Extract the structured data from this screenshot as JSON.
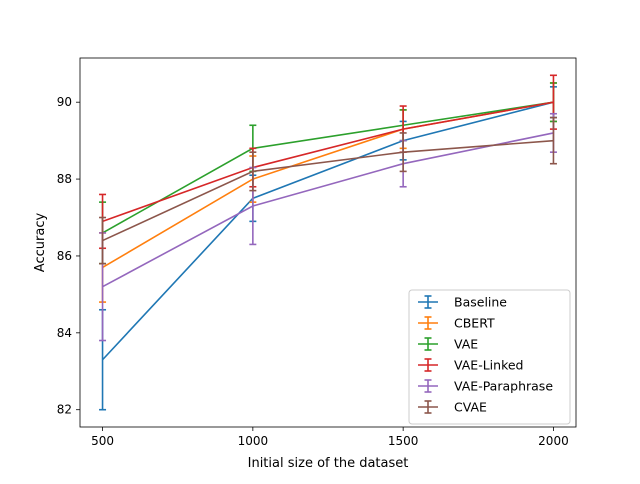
{
  "chart_data": {
    "type": "line",
    "title": "",
    "xlabel": "Initial size of the dataset",
    "ylabel": "Accuracy",
    "x": [
      500,
      1000,
      1500,
      2000
    ],
    "x_ticks": [
      "500",
      "1000",
      "1500",
      "2000"
    ],
    "y_ticks": [
      "82",
      "84",
      "86",
      "88",
      "90"
    ],
    "xlim": [
      425,
      2075
    ],
    "ylim": [
      81.55,
      91.15
    ],
    "grid": false,
    "legend_position": "lower-right",
    "series": [
      {
        "name": "Baseline",
        "color": "#1f77b4",
        "values": [
          83.3,
          87.5,
          89.0,
          90.0
        ],
        "errors": [
          1.3,
          0.6,
          0.5,
          0.4
        ]
      },
      {
        "name": "CBERT",
        "color": "#ff7f0e",
        "values": [
          85.7,
          88.0,
          89.3,
          90.0
        ],
        "errors": [
          0.9,
          0.6,
          0.5,
          0.5
        ]
      },
      {
        "name": "VAE",
        "color": "#2ca02c",
        "values": [
          86.6,
          88.8,
          89.4,
          90.0
        ],
        "errors": [
          0.8,
          0.6,
          0.4,
          0.5
        ]
      },
      {
        "name": "VAE-Linked",
        "color": "#d62728",
        "values": [
          86.9,
          88.3,
          89.3,
          90.0
        ],
        "errors": [
          0.7,
          0.5,
          0.6,
          0.7
        ]
      },
      {
        "name": "VAE-Paraphrase",
        "color": "#9467bd",
        "values": [
          85.2,
          87.3,
          88.4,
          89.2
        ],
        "errors": [
          1.4,
          1.0,
          0.6,
          0.5
        ]
      },
      {
        "name": "CVAE",
        "color": "#8c564b",
        "values": [
          86.4,
          88.2,
          88.7,
          89.0
        ],
        "errors": [
          0.6,
          0.5,
          0.5,
          0.6
        ]
      }
    ]
  }
}
